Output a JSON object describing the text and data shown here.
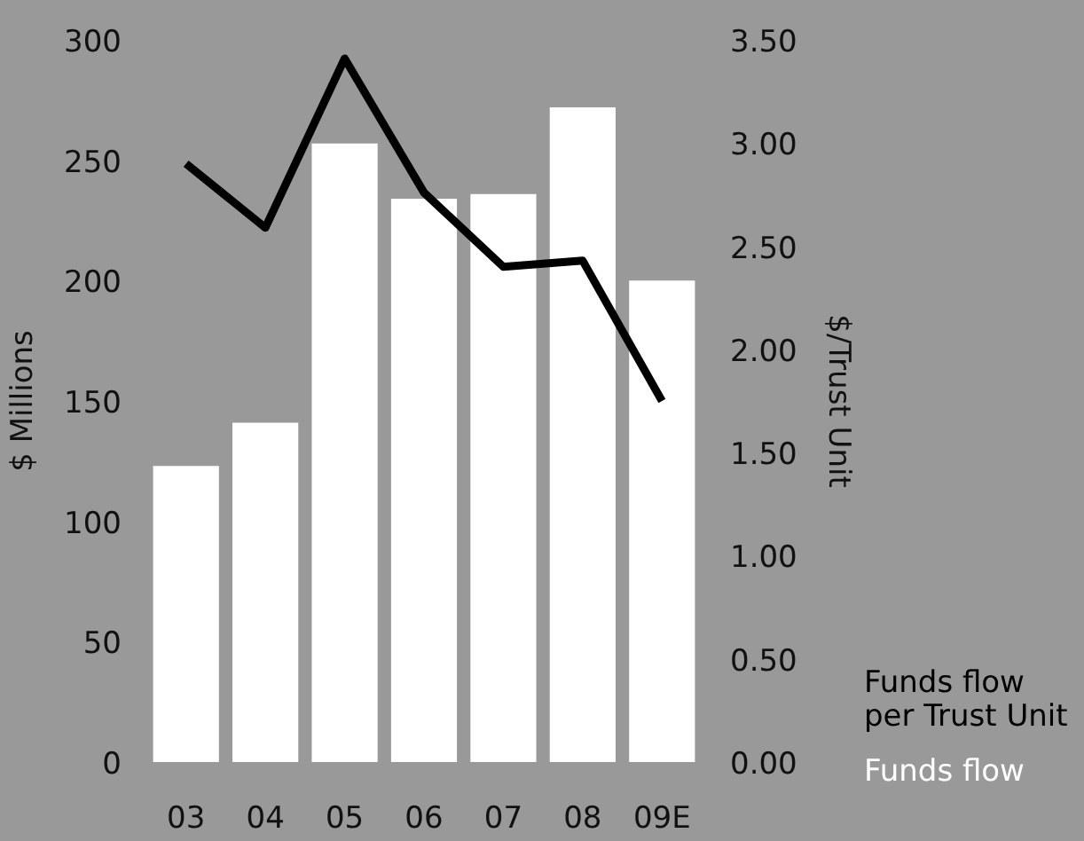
{
  "chart_data": {
    "type": "bar",
    "categories": [
      "03",
      "04",
      "05",
      "06",
      "07",
      "08",
      "09E"
    ],
    "series": [
      {
        "name": "Funds flow",
        "color": "#ffffff",
        "values": [
          123,
          141,
          257,
          234,
          236,
          272,
          200
        ]
      },
      {
        "name": "Funds flow\nper Trust Unit",
        "type": "line",
        "axis": "y2",
        "color": "#000000",
        "values": [
          2.9,
          2.59,
          3.41,
          2.76,
          2.4,
          2.43,
          1.75
        ]
      }
    ],
    "ylabel": "$ Millions",
    "y2label": "$/Trust Unit",
    "ylim": [
      0,
      300
    ],
    "yticks": [
      0,
      50,
      100,
      150,
      200,
      250,
      300
    ],
    "y2lim": [
      0,
      3.5
    ],
    "y2ticks": [
      {
        "value": 0,
        "label": "0.00"
      },
      {
        "value": 0.5,
        "label": "0.50"
      },
      {
        "value": 1,
        "label": "1.00"
      },
      {
        "value": 1.5,
        "label": "1.50"
      },
      {
        "value": 2,
        "label": "2.00"
      },
      {
        "value": 2.5,
        "label": "2.50"
      },
      {
        "value": 3,
        "label": "3.00"
      },
      {
        "value": 3.5,
        "label": "3.50"
      }
    ],
    "grid": false,
    "line_style": "solid"
  }
}
